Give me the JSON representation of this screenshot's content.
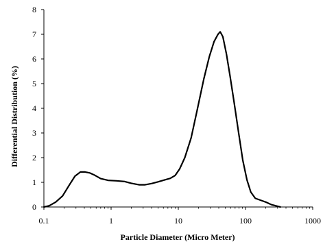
{
  "chart_data": {
    "type": "line",
    "title": "",
    "xlabel": "Particle Diameter (Micro Meter)",
    "ylabel": "Differential Distribution (%)",
    "xscale": "log",
    "xlim": [
      0.1,
      1000
    ],
    "ylim": [
      0,
      8
    ],
    "grid": false,
    "legend": "none",
    "x_ticks": [
      0.1,
      1,
      10,
      100,
      1000
    ],
    "x_tick_labels": [
      "0.1",
      "1",
      "10",
      "100",
      "1000"
    ],
    "y_ticks": [
      0,
      1,
      2,
      3,
      4,
      5,
      6,
      7,
      8
    ],
    "y_tick_labels": [
      "0",
      "1",
      "2",
      "3",
      "4",
      "5",
      "6",
      "7",
      "8"
    ],
    "series": [
      {
        "color": "#000000",
        "x": [
          0.1,
          0.12,
          0.15,
          0.19,
          0.24,
          0.29,
          0.35,
          0.41,
          0.48,
          0.56,
          0.7,
          0.9,
          1.2,
          1.6,
          2.0,
          2.6,
          3.2,
          4.0,
          5.0,
          6.3,
          7.6,
          9.0,
          10.5,
          12.5,
          15.5,
          19,
          24,
          29,
          34,
          39,
          42,
          46,
          52,
          59,
          68,
          79,
          91,
          105,
          120,
          140,
          165,
          200,
          240,
          290,
          330
        ],
        "y": [
          0.0,
          0.05,
          0.2,
          0.45,
          0.9,
          1.25,
          1.42,
          1.42,
          1.38,
          1.3,
          1.15,
          1.08,
          1.06,
          1.03,
          0.96,
          0.9,
          0.9,
          0.95,
          1.02,
          1.1,
          1.16,
          1.28,
          1.55,
          2.0,
          2.8,
          3.9,
          5.2,
          6.1,
          6.7,
          7.0,
          7.1,
          6.9,
          6.2,
          5.3,
          4.2,
          3.0,
          1.9,
          1.1,
          0.6,
          0.35,
          0.28,
          0.2,
          0.1,
          0.04,
          0.0
        ]
      }
    ]
  }
}
